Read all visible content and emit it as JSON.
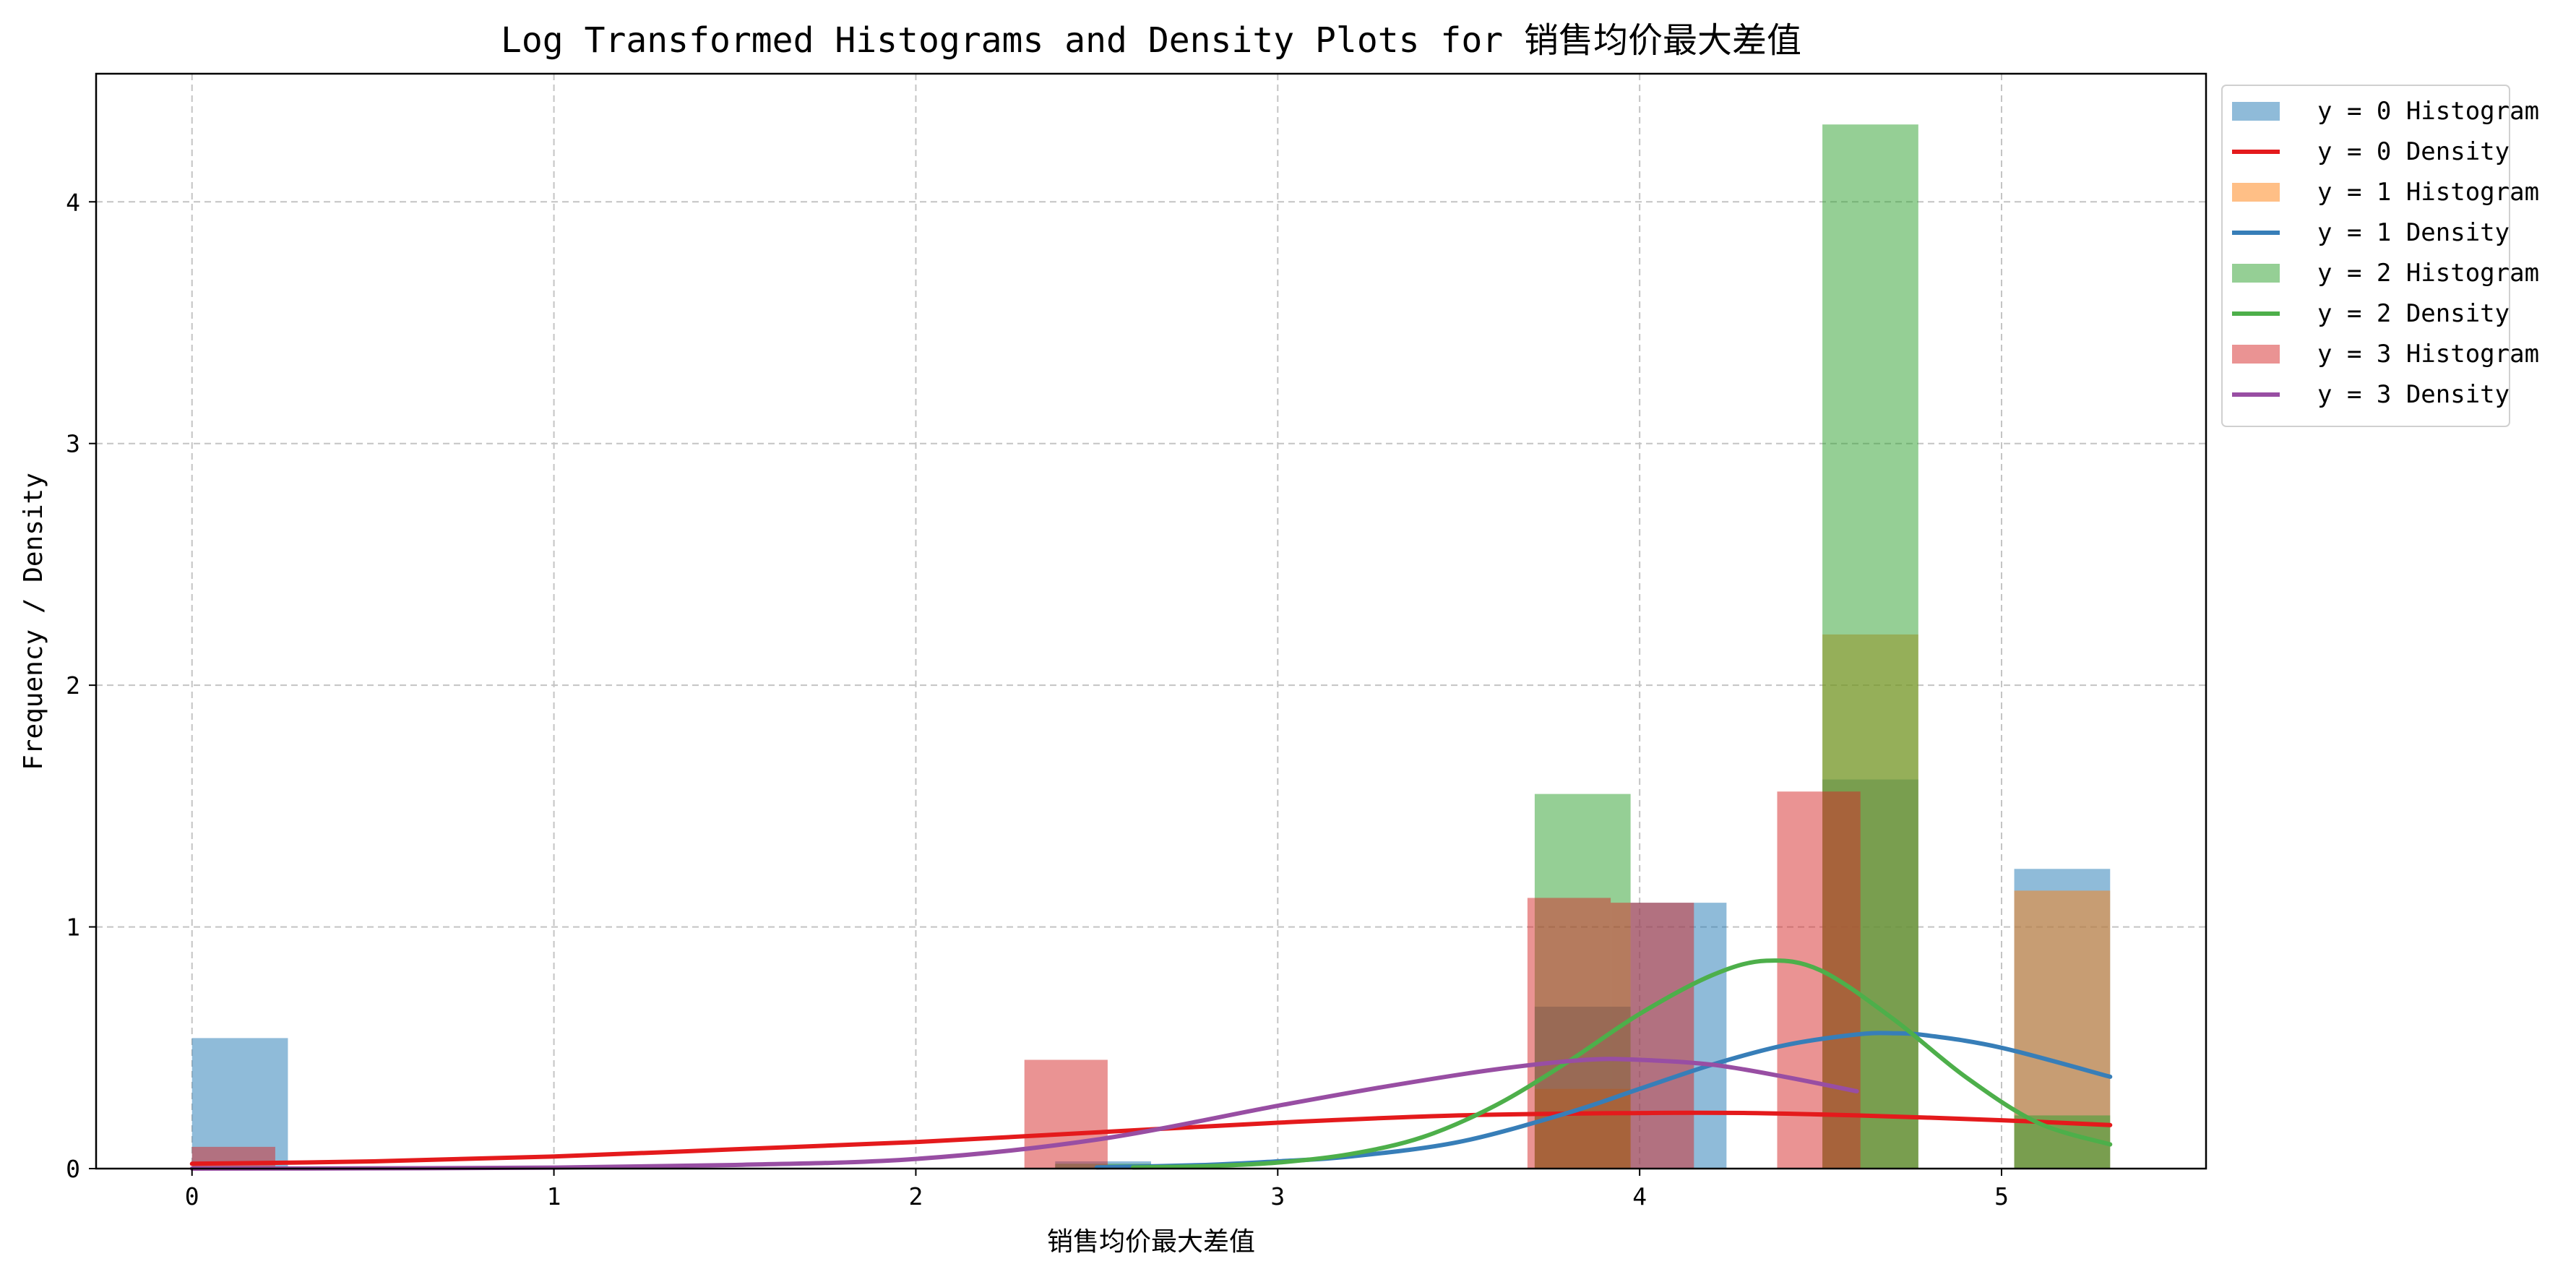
{
  "chart_data": {
    "type": "histogram+density",
    "title": "Log Transformed Histograms and Density Plots for 销售均价最大差值",
    "xlabel": "销售均价最大差值",
    "ylabel": "Frequency / Density",
    "xlim": [
      -0.265,
      5.565
    ],
    "ylim": [
      0,
      4.53
    ],
    "x_ticks": [
      0,
      1,
      2,
      3,
      4,
      5
    ],
    "y_ticks": [
      0,
      1,
      2,
      3,
      4
    ],
    "grid": true,
    "grid_style": "dashed",
    "legend_position": "outside-right-top",
    "series": [
      {
        "name": "y = 0 Histogram",
        "kind": "histogram",
        "color": "#1f77b4",
        "alpha": 0.5,
        "bins": [
          {
            "x0": 0.0,
            "x1": 0.265,
            "h": 0.54
          },
          {
            "x0": 2.385,
            "x1": 2.65,
            "h": 0.03
          },
          {
            "x0": 3.71,
            "x1": 3.975,
            "h": 0.67
          },
          {
            "x0": 3.975,
            "x1": 4.24,
            "h": 1.1
          },
          {
            "x0": 4.505,
            "x1": 4.77,
            "h": 1.61
          },
          {
            "x0": 5.035,
            "x1": 5.3,
            "h": 1.24
          }
        ]
      },
      {
        "name": "y = 0 Density",
        "kind": "density",
        "color": "#e41a1c",
        "x": [
          0.0,
          0.5,
          1.0,
          1.5,
          2.0,
          2.5,
          3.0,
          3.5,
          4.0,
          4.3,
          4.6,
          5.0,
          5.3
        ],
        "y": [
          0.02,
          0.03,
          0.05,
          0.08,
          0.11,
          0.15,
          0.19,
          0.22,
          0.23,
          0.23,
          0.22,
          0.2,
          0.18
        ]
      },
      {
        "name": "y = 1 Histogram",
        "kind": "histogram",
        "color": "#ff7f0e",
        "alpha": 0.5,
        "bins": [
          {
            "x0": 3.71,
            "x1": 3.975,
            "h": 0.33
          },
          {
            "x0": 4.505,
            "x1": 4.77,
            "h": 2.21
          },
          {
            "x0": 5.035,
            "x1": 5.3,
            "h": 1.15
          }
        ]
      },
      {
        "name": "y = 1 Density",
        "kind": "density",
        "color": "#377eb8",
        "x": [
          2.5,
          2.8,
          3.0,
          3.2,
          3.5,
          3.8,
          4.0,
          4.2,
          4.4,
          4.6,
          4.7,
          4.8,
          5.0,
          5.3
        ],
        "y": [
          0.005,
          0.015,
          0.03,
          0.05,
          0.11,
          0.23,
          0.33,
          0.43,
          0.51,
          0.555,
          0.56,
          0.55,
          0.5,
          0.38
        ]
      },
      {
        "name": "y = 2 Histogram",
        "kind": "histogram",
        "color": "#2ca02c",
        "alpha": 0.5,
        "bins": [
          {
            "x0": 2.385,
            "x1": 2.65,
            "h": 0.02
          },
          {
            "x0": 3.71,
            "x1": 3.975,
            "h": 1.55
          },
          {
            "x0": 4.505,
            "x1": 4.77,
            "h": 4.32
          },
          {
            "x0": 5.035,
            "x1": 5.3,
            "h": 0.22
          }
        ]
      },
      {
        "name": "y = 2 Density",
        "kind": "density",
        "color": "#4daf4a",
        "x": [
          2.6,
          2.8,
          3.0,
          3.2,
          3.4,
          3.6,
          3.8,
          4.0,
          4.2,
          4.35,
          4.5,
          4.7,
          4.9,
          5.1,
          5.3
        ],
        "y": [
          0.005,
          0.01,
          0.025,
          0.06,
          0.13,
          0.26,
          0.44,
          0.64,
          0.8,
          0.86,
          0.82,
          0.62,
          0.38,
          0.19,
          0.1
        ]
      },
      {
        "name": "y = 3 Histogram",
        "kind": "histogram",
        "color": "#d62728",
        "alpha": 0.5,
        "bins": [
          {
            "x0": 0.0,
            "x1": 0.23,
            "h": 0.09
          },
          {
            "x0": 2.3,
            "x1": 2.53,
            "h": 0.45
          },
          {
            "x0": 3.69,
            "x1": 3.92,
            "h": 1.12
          },
          {
            "x0": 3.92,
            "x1": 4.15,
            "h": 1.1
          },
          {
            "x0": 4.38,
            "x1": 4.61,
            "h": 1.56
          }
        ]
      },
      {
        "name": "y = 3 Density",
        "kind": "density",
        "color": "#984ea3",
        "x": [
          0.0,
          0.5,
          1.0,
          1.5,
          2.0,
          2.5,
          3.0,
          3.3,
          3.6,
          3.85,
          4.0,
          4.2,
          4.4,
          4.6
        ],
        "y": [
          0.0,
          0.001,
          0.004,
          0.015,
          0.04,
          0.12,
          0.26,
          0.34,
          0.41,
          0.45,
          0.45,
          0.43,
          0.38,
          0.32
        ]
      }
    ]
  }
}
